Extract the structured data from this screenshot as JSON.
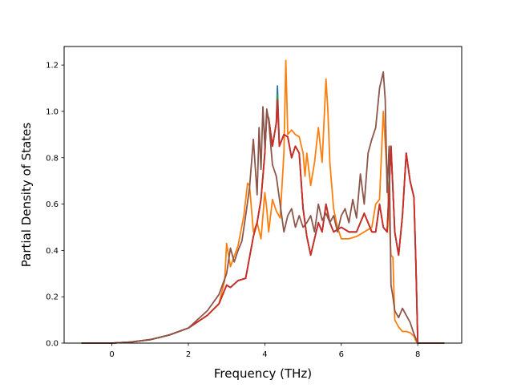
{
  "chart_data": {
    "type": "line",
    "title": "",
    "xlabel": "Frequency (THz)",
    "ylabel": "Partial Density of States",
    "xlim": [
      -1.25,
      9.15
    ],
    "ylim": [
      0.0,
      1.28
    ],
    "xticks": [
      0,
      2,
      4,
      6,
      8
    ],
    "xtick_labels": [
      "0",
      "2",
      "4",
      "6",
      "8"
    ],
    "yticks": [
      0.0,
      0.2,
      0.4,
      0.6,
      0.8,
      1.0,
      1.2
    ],
    "ytick_labels": [
      "0.0",
      "0.2",
      "0.4",
      "0.6",
      "0.8",
      "1.0",
      "1.2"
    ],
    "grid": false,
    "legend": "none",
    "series": [
      {
        "color": "#1f77b4",
        "x": [
          -0.8,
          0.0,
          0.5,
          1.0,
          1.5,
          2.0,
          2.5,
          2.8,
          3.0,
          3.1,
          3.3,
          3.5,
          3.7,
          3.8,
          3.9,
          4.0,
          4.05,
          4.1,
          4.2,
          4.3,
          4.33,
          4.38,
          4.5,
          4.6,
          4.7,
          4.8,
          4.9,
          5.0,
          5.1,
          5.2,
          5.3,
          5.4,
          5.5,
          5.6,
          5.7,
          5.8,
          6.0,
          6.2,
          6.4,
          6.6,
          6.8,
          6.9,
          7.0,
          7.1,
          7.2,
          7.3,
          7.4,
          7.5,
          7.6,
          7.7,
          7.8,
          7.9,
          7.95,
          8.0,
          8.7
        ],
        "y": [
          0.0,
          0.0,
          0.005,
          0.015,
          0.035,
          0.065,
          0.12,
          0.17,
          0.25,
          0.24,
          0.27,
          0.28,
          0.46,
          0.52,
          0.62,
          0.82,
          0.99,
          0.97,
          0.85,
          0.95,
          1.11,
          0.85,
          0.9,
          0.89,
          0.8,
          0.85,
          0.82,
          0.58,
          0.46,
          0.38,
          0.45,
          0.52,
          0.48,
          0.6,
          0.52,
          0.48,
          0.5,
          0.48,
          0.48,
          0.56,
          0.48,
          0.48,
          0.6,
          0.5,
          0.48,
          0.85,
          0.48,
          0.38,
          0.55,
          0.82,
          0.7,
          0.63,
          0.35,
          0.0,
          0.0
        ]
      },
      {
        "color": "#ff7f0e",
        "x": [
          -0.8,
          0.0,
          0.5,
          1.0,
          1.5,
          2.0,
          2.5,
          2.8,
          2.95,
          3.0,
          3.1,
          3.3,
          3.45,
          3.55,
          3.6,
          3.7,
          3.8,
          3.9,
          4.0,
          4.05,
          4.1,
          4.2,
          4.3,
          4.4,
          4.5,
          4.55,
          4.6,
          4.7,
          4.8,
          4.9,
          5.0,
          5.05,
          5.1,
          5.2,
          5.3,
          5.4,
          5.5,
          5.6,
          5.65,
          5.7,
          5.8,
          5.9,
          6.0,
          6.2,
          6.4,
          6.6,
          6.8,
          6.9,
          7.0,
          7.1,
          7.2,
          7.3,
          7.35,
          7.4,
          7.5,
          7.6,
          7.7,
          7.8,
          7.9,
          7.95,
          8.0,
          8.7
        ],
        "y": [
          0.0,
          0.0,
          0.005,
          0.015,
          0.035,
          0.065,
          0.12,
          0.17,
          0.27,
          0.43,
          0.33,
          0.42,
          0.55,
          0.69,
          0.68,
          0.48,
          0.52,
          0.45,
          0.65,
          0.58,
          0.48,
          0.62,
          0.57,
          0.54,
          0.82,
          1.22,
          0.9,
          0.92,
          0.9,
          0.89,
          0.82,
          0.72,
          0.82,
          0.68,
          0.78,
          0.93,
          0.78,
          1.14,
          1.0,
          0.78,
          0.58,
          0.5,
          0.45,
          0.45,
          0.46,
          0.48,
          0.5,
          0.6,
          0.62,
          1.0,
          0.72,
          0.38,
          0.37,
          0.1,
          0.07,
          0.05,
          0.05,
          0.045,
          0.03,
          0.01,
          0.0,
          0.0
        ]
      },
      {
        "color": "#2ca02c",
        "x": [
          -0.8,
          0.0,
          0.5,
          1.0,
          1.5,
          2.0,
          2.5,
          2.8,
          3.0,
          3.1,
          3.3,
          3.5,
          3.7,
          3.8,
          3.9,
          4.0,
          4.05,
          4.1,
          4.2,
          4.3,
          4.33,
          4.38,
          4.5,
          4.6,
          4.7,
          4.8,
          4.9,
          5.0,
          5.1,
          5.2,
          5.3,
          5.4,
          5.5,
          5.6,
          5.7,
          5.8,
          6.0,
          6.2,
          6.4,
          6.6,
          6.8,
          6.9,
          7.0,
          7.1,
          7.2,
          7.3,
          7.4,
          7.5,
          7.6,
          7.7,
          7.8,
          7.9,
          7.95,
          8.0,
          8.7
        ],
        "y": [
          0.0,
          0.0,
          0.005,
          0.015,
          0.035,
          0.065,
          0.12,
          0.17,
          0.25,
          0.24,
          0.27,
          0.28,
          0.46,
          0.52,
          0.62,
          0.82,
          0.99,
          0.97,
          0.85,
          0.95,
          1.07,
          0.85,
          0.9,
          0.89,
          0.8,
          0.85,
          0.82,
          0.58,
          0.46,
          0.38,
          0.45,
          0.52,
          0.48,
          0.6,
          0.52,
          0.48,
          0.5,
          0.48,
          0.48,
          0.56,
          0.48,
          0.48,
          0.6,
          0.5,
          0.48,
          0.85,
          0.48,
          0.38,
          0.55,
          0.82,
          0.7,
          0.63,
          0.35,
          0.0,
          0.0
        ]
      },
      {
        "color": "#d62728",
        "x": [
          -0.8,
          0.0,
          0.5,
          1.0,
          1.5,
          2.0,
          2.5,
          2.8,
          3.0,
          3.1,
          3.3,
          3.5,
          3.7,
          3.8,
          3.9,
          4.0,
          4.05,
          4.1,
          4.2,
          4.3,
          4.33,
          4.38,
          4.5,
          4.6,
          4.7,
          4.8,
          4.9,
          5.0,
          5.1,
          5.2,
          5.3,
          5.4,
          5.5,
          5.6,
          5.7,
          5.8,
          6.0,
          6.2,
          6.4,
          6.6,
          6.8,
          6.9,
          7.0,
          7.1,
          7.2,
          7.3,
          7.4,
          7.5,
          7.6,
          7.7,
          7.8,
          7.9,
          7.95,
          8.0,
          8.7
        ],
        "y": [
          0.0,
          0.0,
          0.005,
          0.015,
          0.035,
          0.065,
          0.12,
          0.17,
          0.25,
          0.24,
          0.27,
          0.28,
          0.46,
          0.52,
          0.62,
          0.82,
          0.99,
          0.97,
          0.85,
          0.95,
          1.05,
          0.85,
          0.9,
          0.89,
          0.8,
          0.85,
          0.82,
          0.58,
          0.46,
          0.38,
          0.45,
          0.52,
          0.48,
          0.6,
          0.52,
          0.48,
          0.5,
          0.48,
          0.48,
          0.56,
          0.48,
          0.48,
          0.6,
          0.5,
          0.48,
          0.85,
          0.48,
          0.38,
          0.55,
          0.82,
          0.7,
          0.63,
          0.35,
          0.0,
          0.0
        ]
      },
      {
        "color": "#8c564b",
        "x": [
          -0.8,
          0.0,
          0.5,
          1.0,
          1.5,
          2.0,
          2.5,
          2.8,
          3.0,
          3.1,
          3.2,
          3.3,
          3.4,
          3.5,
          3.6,
          3.7,
          3.8,
          3.85,
          3.9,
          3.95,
          4.0,
          4.05,
          4.1,
          4.2,
          4.3,
          4.35,
          4.4,
          4.5,
          4.6,
          4.7,
          4.8,
          4.9,
          5.0,
          5.1,
          5.2,
          5.3,
          5.4,
          5.5,
          5.6,
          5.7,
          5.8,
          5.9,
          6.0,
          6.1,
          6.2,
          6.3,
          6.4,
          6.5,
          6.6,
          6.7,
          6.8,
          6.9,
          7.0,
          7.1,
          7.15,
          7.2,
          7.25,
          7.3,
          7.35,
          7.4,
          7.5,
          7.6,
          7.7,
          7.8,
          7.9,
          7.95,
          8.0,
          8.7
        ],
        "y": [
          0.0,
          0.0,
          0.005,
          0.015,
          0.035,
          0.065,
          0.14,
          0.21,
          0.3,
          0.41,
          0.35,
          0.4,
          0.44,
          0.55,
          0.67,
          0.88,
          0.64,
          0.93,
          0.75,
          1.02,
          0.85,
          1.01,
          0.96,
          0.77,
          0.72,
          0.66,
          0.6,
          0.48,
          0.55,
          0.58,
          0.5,
          0.55,
          0.5,
          0.52,
          0.55,
          0.48,
          0.6,
          0.53,
          0.56,
          0.52,
          0.55,
          0.48,
          0.55,
          0.58,
          0.52,
          0.62,
          0.54,
          0.73,
          0.6,
          0.82,
          0.88,
          0.93,
          1.1,
          1.17,
          1.05,
          0.65,
          0.85,
          0.25,
          0.2,
          0.14,
          0.11,
          0.15,
          0.12,
          0.09,
          0.04,
          0.02,
          0.0,
          0.0
        ]
      }
    ]
  }
}
